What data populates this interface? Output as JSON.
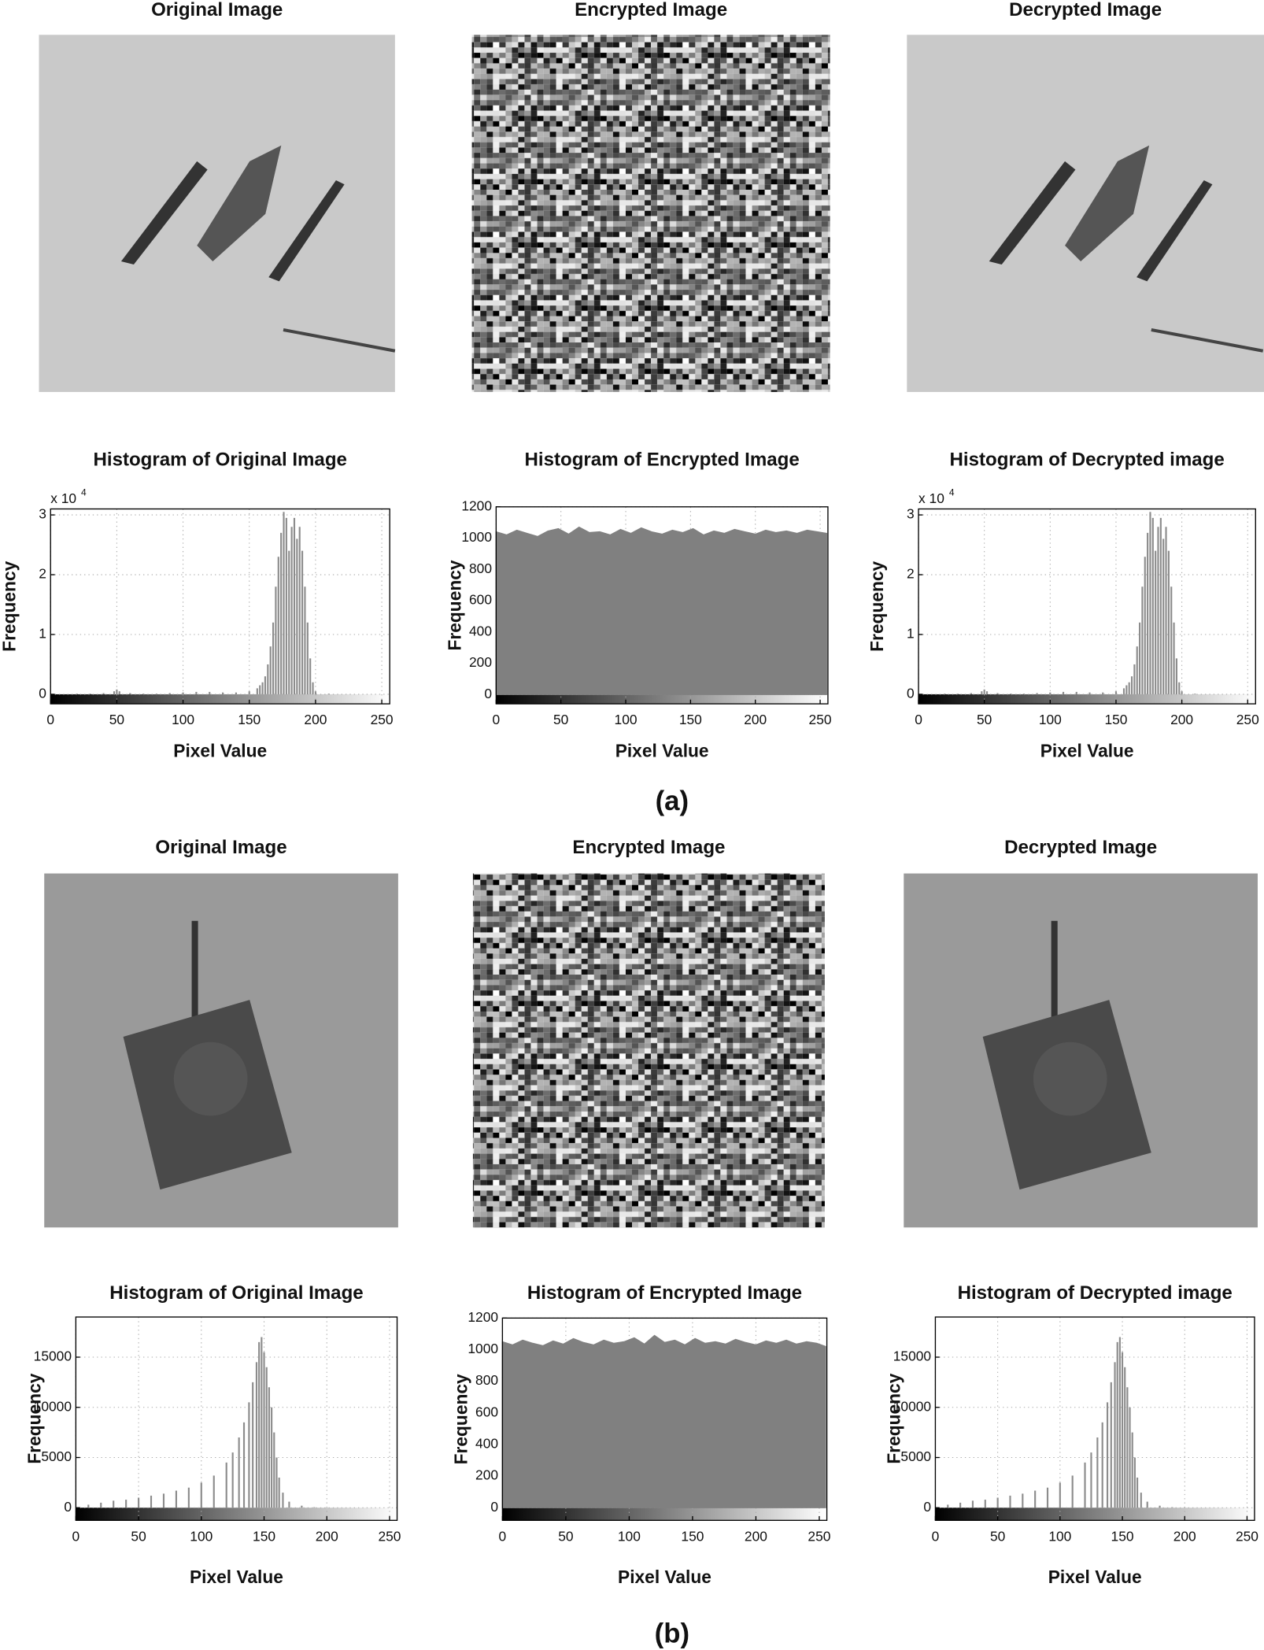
{
  "panels": [
    {
      "image_titles": [
        "Original Image",
        "Encrypted  Image",
        "Decrypted  Image"
      ],
      "caption": "(a)"
    },
    {
      "image_titles": [
        "Original Image",
        "Encrypted  Image",
        "Decrypted  Image"
      ],
      "caption": "(b)"
    }
  ],
  "chart_data": [
    {
      "type": "bar",
      "title": "Histogram of Original Image",
      "xlabel": "Pixel Value",
      "ylabel": "Frequency",
      "multiplier": "x 10",
      "multiplier_exponent": "4",
      "color": "#8c8c8c",
      "grid": true,
      "x": [
        0,
        10,
        20,
        30,
        40,
        48,
        50,
        52,
        60,
        70,
        80,
        90,
        100,
        110,
        120,
        130,
        140,
        150,
        156,
        158,
        160,
        162,
        164,
        166,
        168,
        170,
        172,
        174,
        176,
        178,
        180,
        182,
        184,
        186,
        188,
        190,
        192,
        194,
        196,
        198,
        200,
        210,
        230,
        250
      ],
      "values": [
        0,
        0,
        0.01,
        0.01,
        0.02,
        0.05,
        0.08,
        0.05,
        0.02,
        0.01,
        0.01,
        0.02,
        0.03,
        0.04,
        0.04,
        0.03,
        0.03,
        0.05,
        0.1,
        0.15,
        0.2,
        0.3,
        0.5,
        0.8,
        1.2,
        1.8,
        2.3,
        2.7,
        3.05,
        2.95,
        2.4,
        2.8,
        2.95,
        2.6,
        2.8,
        2.4,
        1.8,
        1.2,
        0.6,
        0.2,
        0.05,
        0.01,
        0,
        0
      ],
      "xlim": [
        0,
        256
      ],
      "xticks": [
        0,
        50,
        100,
        150,
        200,
        250
      ],
      "ylim": [
        -0.16,
        3.1
      ],
      "yticks": [
        0,
        1,
        2,
        3
      ]
    },
    {
      "type": "area",
      "title": "Histogram of Encrypted  Image",
      "xlabel": "Pixel Value",
      "ylabel": "Frequency",
      "color": "#808080",
      "grid": true,
      "x": [
        0,
        8,
        16,
        24,
        32,
        40,
        48,
        56,
        64,
        72,
        80,
        88,
        96,
        104,
        112,
        120,
        128,
        136,
        144,
        152,
        160,
        168,
        176,
        184,
        192,
        200,
        208,
        216,
        224,
        232,
        240,
        248,
        255
      ],
      "values": [
        1040,
        1020,
        1050,
        1030,
        1010,
        1045,
        1060,
        1025,
        1070,
        1035,
        1040,
        1020,
        1055,
        1030,
        1065,
        1040,
        1025,
        1050,
        1035,
        1060,
        1020,
        1045,
        1030,
        1055,
        1040,
        1025,
        1050,
        1035,
        1045,
        1030,
        1050,
        1040,
        1030
      ],
      "xlim": [
        0,
        256
      ],
      "xticks": [
        0,
        50,
        100,
        150,
        200,
        250
      ],
      "ylim": [
        -60,
        1200
      ],
      "yticks": [
        0,
        200,
        400,
        600,
        800,
        1000,
        1200
      ]
    },
    {
      "type": "bar",
      "title": "Histogram of Decrypted  image",
      "xlabel": "Pixel Value",
      "ylabel": "Frequency",
      "multiplier": "x 10",
      "multiplier_exponent": "4",
      "color": "#8c8c8c",
      "grid": true,
      "x": [
        0,
        10,
        20,
        30,
        40,
        48,
        50,
        52,
        60,
        70,
        80,
        90,
        100,
        110,
        120,
        130,
        140,
        150,
        156,
        158,
        160,
        162,
        164,
        166,
        168,
        170,
        172,
        174,
        176,
        178,
        180,
        182,
        184,
        186,
        188,
        190,
        192,
        194,
        196,
        198,
        200,
        210,
        230,
        250
      ],
      "values": [
        0,
        0,
        0.01,
        0.01,
        0.02,
        0.05,
        0.08,
        0.05,
        0.02,
        0.01,
        0.01,
        0.02,
        0.03,
        0.04,
        0.04,
        0.03,
        0.03,
        0.05,
        0.1,
        0.15,
        0.2,
        0.3,
        0.5,
        0.8,
        1.2,
        1.8,
        2.3,
        2.7,
        3.05,
        2.95,
        2.4,
        2.8,
        2.95,
        2.6,
        2.8,
        2.4,
        1.8,
        1.2,
        0.6,
        0.2,
        0.05,
        0.01,
        0,
        0
      ],
      "xlim": [
        0,
        256
      ],
      "xticks": [
        0,
        50,
        100,
        150,
        200,
        250
      ],
      "ylim": [
        -0.16,
        3.1
      ],
      "yticks": [
        0,
        1,
        2,
        3
      ]
    },
    {
      "type": "bar",
      "title": "Histogram of Original Image",
      "xlabel": "Pixel Value",
      "ylabel": "Frequency",
      "color": "#8c8c8c",
      "grid": true,
      "x": [
        0,
        10,
        20,
        30,
        40,
        50,
        60,
        70,
        80,
        90,
        100,
        110,
        120,
        125,
        130,
        134,
        138,
        141,
        144,
        146,
        148,
        150,
        152,
        154,
        156,
        158,
        160,
        162,
        165,
        170,
        180,
        190,
        200,
        250
      ],
      "values": [
        0,
        300,
        500,
        700,
        800,
        1000,
        1200,
        1400,
        1700,
        2000,
        2500,
        3200,
        4500,
        5500,
        7000,
        8500,
        10500,
        12500,
        14500,
        16500,
        17000,
        15500,
        14000,
        12000,
        10000,
        7500,
        5000,
        3000,
        1500,
        600,
        200,
        50,
        0,
        0
      ],
      "xlim": [
        0,
        256
      ],
      "xticks": [
        0,
        50,
        100,
        150,
        200,
        250
      ],
      "ylim": [
        -1260,
        19000
      ],
      "yticks": [
        0,
        5000,
        10000,
        15000
      ]
    },
    {
      "type": "area",
      "title": "Histogram of Encrypted  Image",
      "xlabel": "Pixel Value",
      "ylabel": "Frequency",
      "color": "#808080",
      "grid": true,
      "x": [
        0,
        8,
        16,
        24,
        32,
        40,
        48,
        56,
        64,
        72,
        80,
        88,
        96,
        104,
        112,
        120,
        128,
        136,
        144,
        152,
        160,
        168,
        176,
        184,
        192,
        200,
        208,
        216,
        224,
        232,
        240,
        248,
        255
      ],
      "values": [
        1050,
        1030,
        1060,
        1040,
        1025,
        1055,
        1035,
        1070,
        1045,
        1030,
        1060,
        1040,
        1050,
        1075,
        1035,
        1090,
        1045,
        1060,
        1030,
        1070,
        1040,
        1050,
        1035,
        1065,
        1045,
        1030,
        1055,
        1040,
        1060,
        1035,
        1050,
        1040,
        1020
      ],
      "xlim": [
        0,
        256
      ],
      "xticks": [
        0,
        50,
        100,
        150,
        200,
        250
      ],
      "ylim": [
        -80,
        1200
      ],
      "yticks": [
        0,
        200,
        400,
        600,
        800,
        1000,
        1200
      ]
    },
    {
      "type": "bar",
      "title": "Histogram of Decrypted  image",
      "xlabel": "Pixel Value",
      "ylabel": "Frequency",
      "color": "#8c8c8c",
      "grid": true,
      "x": [
        0,
        10,
        20,
        30,
        40,
        50,
        60,
        70,
        80,
        90,
        100,
        110,
        120,
        125,
        130,
        134,
        138,
        141,
        144,
        146,
        148,
        150,
        152,
        154,
        156,
        158,
        160,
        162,
        165,
        170,
        180,
        190,
        200,
        250
      ],
      "values": [
        0,
        300,
        500,
        700,
        800,
        1000,
        1200,
        1400,
        1700,
        2000,
        2500,
        3200,
        4500,
        5500,
        7000,
        8500,
        10500,
        12500,
        14500,
        16500,
        17000,
        15500,
        14000,
        12000,
        10000,
        7500,
        5000,
        3000,
        1500,
        600,
        200,
        50,
        0,
        0
      ],
      "xlim": [
        0,
        256
      ],
      "xticks": [
        0,
        50,
        100,
        150,
        200,
        250
      ],
      "ylim": [
        -1260,
        19000
      ],
      "yticks": [
        0,
        5000,
        10000,
        15000
      ]
    }
  ]
}
